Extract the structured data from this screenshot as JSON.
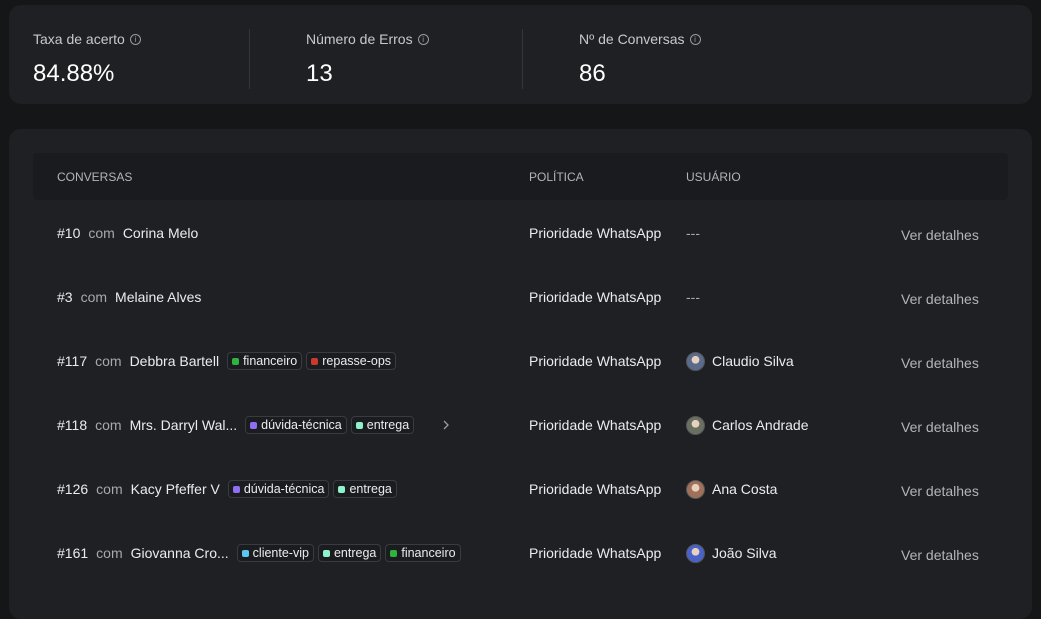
{
  "stats": [
    {
      "label": "Taxa de acerto",
      "value": "84.88%"
    },
    {
      "label": "Número de Erros",
      "value": "13"
    },
    {
      "label": "Nº de Conversas",
      "value": "86"
    }
  ],
  "table": {
    "headers": [
      "CONVERSAS",
      "POLÍTICA",
      "USUÁRIO"
    ],
    "rows": [
      {
        "id": "#10",
        "connector": "com",
        "name": "Corina Melo",
        "tags": [],
        "policy": "Prioridade WhatsApp",
        "user": "---",
        "action": "Ver detalhes"
      },
      {
        "id": "#3",
        "connector": "com",
        "name": "Melaine Alves",
        "tags": [],
        "policy": "Prioridade WhatsApp",
        "user": "---",
        "action": "Ver detalhes"
      },
      {
        "id": "#117",
        "connector": "com",
        "name": "Debbra Bartell",
        "tags": [
          {
            "label": "financeiro",
            "color": "#2eb33f"
          },
          {
            "label": "repasse-ops",
            "color": "#c9392e"
          }
        ],
        "policy": "Prioridade WhatsApp",
        "user": "Claudio Silva",
        "avatar": "#5a6a8a",
        "action": "Ver detalhes"
      },
      {
        "id": "#118",
        "connector": "com",
        "name": "Mrs. Darryl Wal...",
        "tags": [
          {
            "label": "dúvida-técnica",
            "color": "#8f6ef2"
          },
          {
            "label": "entrega",
            "color": "#8ff2cc"
          }
        ],
        "policy": "Prioridade WhatsApp",
        "user": "Carlos Andrade",
        "avatar": "#6a7060",
        "action": "Ver detalhes"
      },
      {
        "id": "#126",
        "connector": "com",
        "name": "Kacy Pfeffer V",
        "tags": [
          {
            "label": "dúvida-técnica",
            "color": "#8f6ef2"
          },
          {
            "label": "entrega",
            "color": "#8ff2cc"
          }
        ],
        "policy": "Prioridade WhatsApp",
        "user": "Ana Costa",
        "avatar": "#a0705a",
        "action": "Ver detalhes"
      },
      {
        "id": "#161",
        "connector": "com",
        "name": "Giovanna Cro...",
        "tags": [
          {
            "label": "cliente-vip",
            "color": "#5cc6f2"
          },
          {
            "label": "entrega",
            "color": "#8ff2cc"
          },
          {
            "label": "financeiro",
            "color": "#2eb33f"
          }
        ],
        "policy": "Prioridade WhatsApp",
        "user": "João Silva",
        "avatar": "#4a62c8",
        "action": "Ver detalhes"
      }
    ]
  }
}
